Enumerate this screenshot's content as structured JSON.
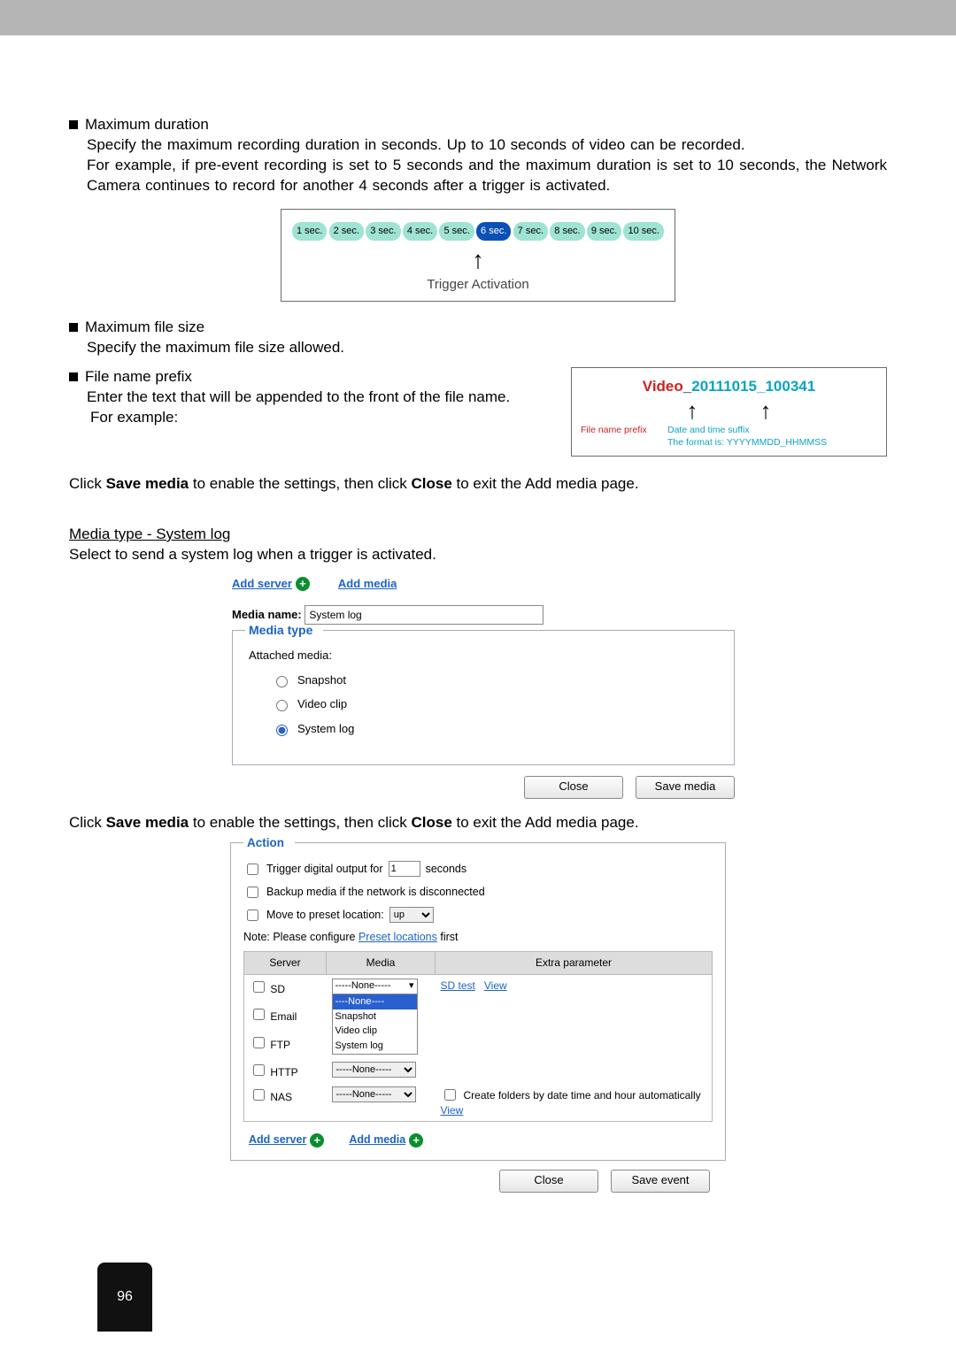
{
  "page_number": "96",
  "sections": {
    "max_duration": {
      "title": "Maximum duration",
      "line1": "Specify the maximum recording duration in seconds. Up to 10 seconds of video can be recorded.",
      "line2": "For example, if pre-event recording is set to 5 seconds and the maximum duration is set to 10 seconds, the Network Camera continues to record for another 4 seconds after a trigger is activated."
    },
    "timeline": {
      "items": [
        "1 sec.",
        "2 sec.",
        "3 sec.",
        "4 sec.",
        "5 sec.",
        "6 sec.",
        "7 sec.",
        "8 sec.",
        "9 sec.",
        "10 sec."
      ],
      "highlight_index": 5,
      "pill_teal": "#9fe3d5",
      "pill_blue": "#0b50b7",
      "caption": "Trigger Activation"
    },
    "max_filesize": {
      "title": "Maximum file size",
      "body": "Specify the maximum file size allowed."
    },
    "file_prefix": {
      "title": "File name prefix",
      "body1": "Enter the text that will be appended to the front of the file name.",
      "body2": "For example:"
    },
    "filename_box": {
      "prefix": "Video",
      "sep": "_",
      "suffix": "20111015_100341",
      "label_prefix": "File name prefix",
      "label_suffix1": "Date and time suffix",
      "label_suffix2": "The format is: YYYYMMDD_HHMMSS",
      "color_prefix": "#d02020",
      "color_suffix": "#0aa4c4"
    },
    "save_line_a": "Click ",
    "save_line_b": "Save media",
    "save_line_c": " to enable the settings, then click ",
    "save_line_d": "Close",
    "save_line_e": " to exit the Add media page.",
    "systemlog_heading": "Media type - System log",
    "systemlog_body": "Select to send a system log when a trigger is activated."
  },
  "media_panel": {
    "link_add_server": "Add server",
    "link_add_media": "Add media",
    "name_label": "Media name:",
    "name_value": "System log",
    "fieldset_title": "Media type",
    "attached": "Attached media:",
    "opt_snapshot": "Snapshot",
    "opt_videoclip": "Video clip",
    "opt_systemlog": "System log",
    "btn_close": "Close",
    "btn_save": "Save media"
  },
  "save_line2_a": "Click ",
  "save_line2_b": "Save media",
  "save_line2_c": " to enable the settings, then click ",
  "save_line2_d": "Close",
  "save_line2_e": " to exit the Add media page.",
  "action_panel": {
    "legend": "Action",
    "row_do": {
      "pre": "Trigger digital output for",
      "val": "1",
      "post": "seconds"
    },
    "row_backup": "Backup media if the network is disconnected",
    "row_preset": {
      "pre": "Move to preset location:",
      "val": "up"
    },
    "note_pre": "Note: Please configure ",
    "note_link": "Preset locations",
    "note_post": " first",
    "th_server": "Server",
    "th_media": "Media",
    "th_extra": "Extra parameter",
    "rows": {
      "sd": {
        "label": "SD",
        "sel": "-----None-----",
        "extra_links": [
          "SD test",
          "View"
        ]
      },
      "sd_opts": [
        "----None----",
        "Snapshot",
        "Video clip",
        "System log"
      ],
      "email": {
        "label": "Email"
      },
      "ftp": {
        "label": "FTP"
      },
      "http": {
        "label": "HTTP",
        "sel": "-----None-----"
      },
      "nas": {
        "label": "NAS",
        "sel": "-----None-----",
        "extra_cb": "Create folders by date time and hour automatically",
        "extra_link": "View"
      }
    },
    "bottom_link_add_server": "Add server",
    "bottom_link_add_media": "Add media",
    "btn_close": "Close",
    "btn_save": "Save event"
  }
}
